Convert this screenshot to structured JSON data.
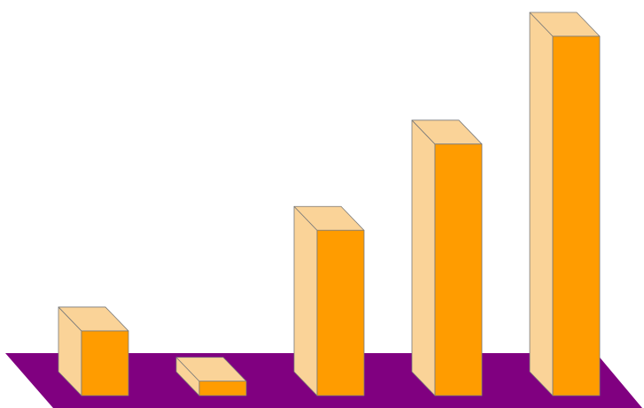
{
  "chart_data": {
    "type": "bar",
    "categories": [
      "",
      "",
      "",
      "",
      ""
    ],
    "values": [
      18,
      4,
      46,
      70,
      100
    ],
    "title": "",
    "xlabel": "",
    "ylabel": "",
    "ylim": [
      0,
      100
    ],
    "grid": false,
    "legend": "none",
    "three_d": true
  },
  "colors": {
    "bar_front": "#ff9c00",
    "bar_side": "#fad398",
    "bar_top": "#fad398",
    "floor": "#800080",
    "edge": "#7a7a7a"
  }
}
